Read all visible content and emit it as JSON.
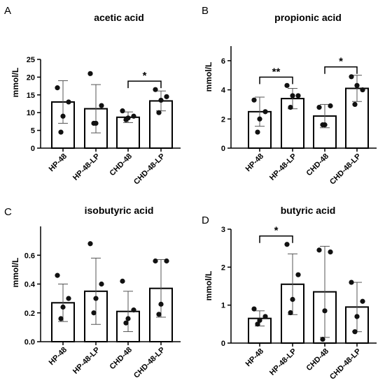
{
  "chart_data": [
    {
      "panel": "A",
      "type": "bar",
      "title": "acetic acid",
      "ylabel": "mmol/L",
      "ylim": [
        0,
        25
      ],
      "yticks": [
        "0",
        "5",
        "10",
        "15",
        "20",
        "25"
      ],
      "categories": [
        "HP-48",
        "HP-48-LP",
        "CHD-48",
        "CHD-48-LP"
      ],
      "values": [
        13.0,
        11.1,
        8.7,
        13.3
      ],
      "error": [
        6.0,
        6.8,
        1.5,
        2.8
      ],
      "points": [
        [
          17.0,
          13.0,
          9.0,
          4.5
        ],
        [
          21.0,
          12.0,
          7.0,
          7.0
        ],
        [
          10.5,
          9.0,
          8.5,
          8.0
        ],
        [
          16.5,
          14.5,
          13.5,
          10.0
        ]
      ],
      "significance": [
        {
          "from": 2,
          "to": 3,
          "label": "*"
        }
      ]
    },
    {
      "panel": "B",
      "type": "bar",
      "title": "propionic acid",
      "ylabel": "mmol/L",
      "ylim": [
        0,
        7
      ],
      "yticks": [
        "0",
        "2",
        "4",
        "6"
      ],
      "categories": [
        "HP-48",
        "HP-48-LP",
        "CHD-48",
        "CHD-48-LP"
      ],
      "values": [
        2.5,
        3.4,
        2.2,
        4.1
      ],
      "error": [
        1.0,
        0.7,
        0.8,
        0.9
      ],
      "points": [
        [
          3.3,
          2.5,
          2.0,
          1.1
        ],
        [
          4.3,
          3.6,
          3.6,
          2.8
        ],
        [
          2.8,
          2.9,
          1.6,
          1.6
        ],
        [
          4.9,
          4.0,
          4.3,
          3.0
        ]
      ],
      "significance": [
        {
          "from": 0,
          "to": 1,
          "label": "**"
        },
        {
          "from": 2,
          "to": 3,
          "label": "*"
        }
      ]
    },
    {
      "panel": "C",
      "type": "bar",
      "title": "isobutyric acid",
      "ylabel": "mmol/L",
      "ylim": [
        0,
        0.8
      ],
      "yticks": [
        "0.0",
        "0.2",
        "0.4",
        "0.6"
      ],
      "categories": [
        "HP-48",
        "HP-48-LP",
        "CHD-48",
        "CHD-48-LP"
      ],
      "values": [
        0.27,
        0.35,
        0.21,
        0.37
      ],
      "error": [
        0.13,
        0.23,
        0.14,
        0.2
      ],
      "points": [
        [
          0.46,
          0.3,
          0.24,
          0.16
        ],
        [
          0.68,
          0.4,
          0.3,
          0.2
        ],
        [
          0.42,
          0.22,
          0.16,
          0.13
        ],
        [
          0.56,
          0.56,
          0.26,
          0.19
        ]
      ],
      "significance": []
    },
    {
      "panel": "D",
      "type": "bar",
      "title": "butyric acid",
      "ylabel": "mmol/L",
      "ylim": [
        0,
        3
      ],
      "yticks": [
        "0",
        "1",
        "2",
        "3"
      ],
      "categories": [
        "HP-48",
        "HP-48-LP",
        "CHD-48",
        "CHD-48-LP"
      ],
      "values": [
        0.65,
        1.55,
        1.35,
        0.95
      ],
      "error": [
        0.2,
        0.8,
        1.2,
        0.65
      ],
      "points": [
        [
          0.9,
          0.7,
          0.6,
          0.5
        ],
        [
          2.6,
          1.8,
          1.15,
          0.8
        ],
        [
          2.45,
          2.4,
          0.85,
          0.1
        ],
        [
          1.6,
          1.1,
          0.7,
          0.3
        ]
      ],
      "significance": [
        {
          "from": 0,
          "to": 1,
          "label": "*"
        }
      ]
    }
  ]
}
